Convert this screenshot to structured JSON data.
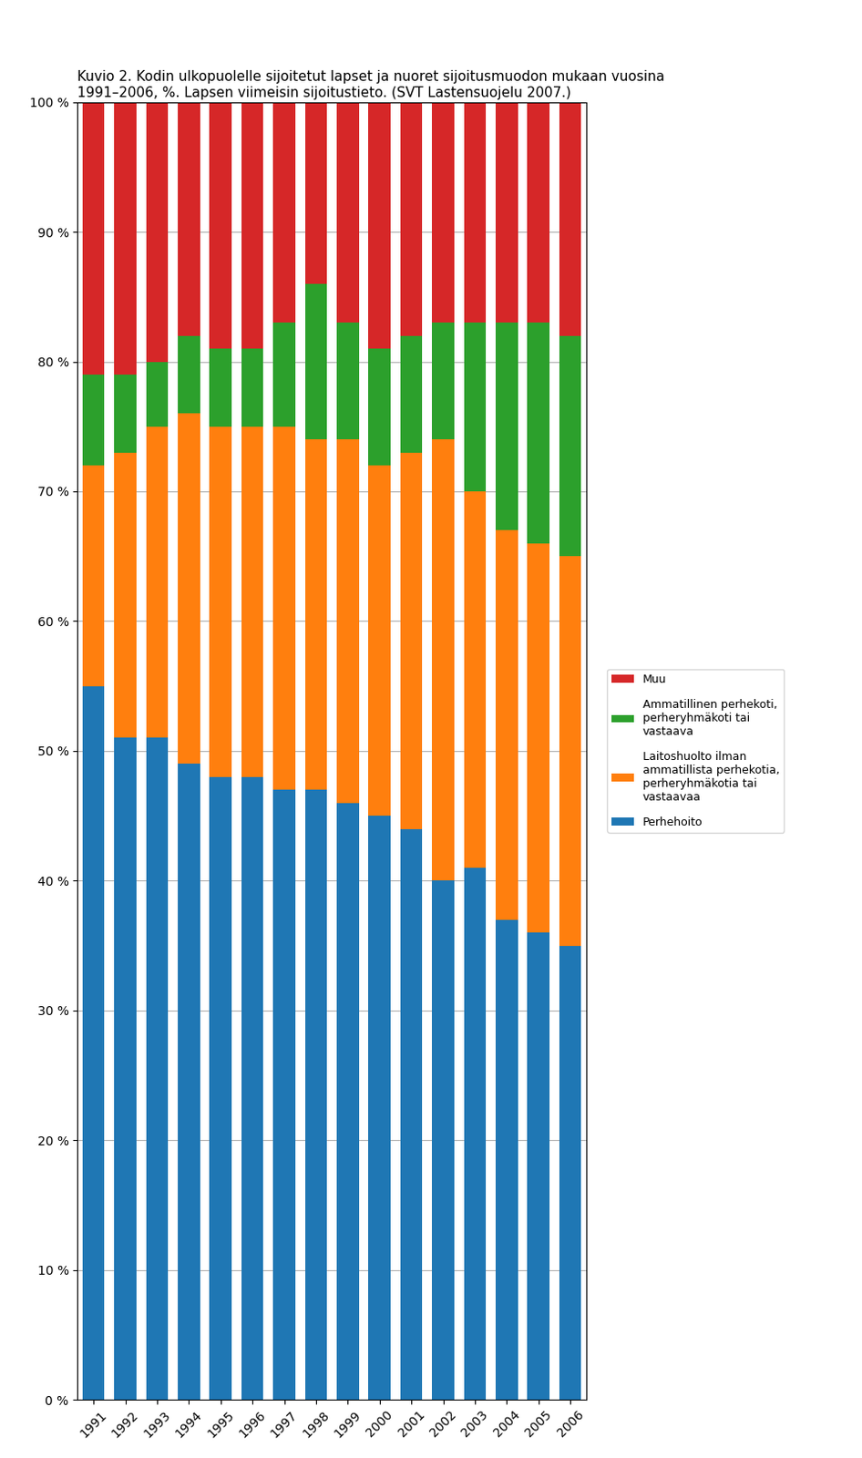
{
  "chart_data": {
    "type": "bar",
    "stacked": true,
    "title": "Kuvio 2. Kodin ulkopuolelle sijoitetut lapset ja nuoret sijoitusmuodon mukaan vuosina\n1991–2006, %. Lapsen viimeisin sijoitustieto. (SVT Lastensuojelu 2007.)",
    "categories": [
      "1991",
      "1992",
      "1993",
      "1994",
      "1995",
      "1996",
      "1997",
      "1998",
      "1999",
      "2000",
      "2001",
      "2002",
      "2003",
      "2004",
      "2005",
      "2006"
    ],
    "series": [
      {
        "name": "Perhehoito",
        "values": [
          55,
          51,
          51,
          49,
          48,
          48,
          47,
          47,
          46,
          45,
          44,
          40,
          41,
          37,
          36,
          35
        ]
      },
      {
        "name": "Laitoshuolto ilman\nammatillista perhekotia,\nperheryhmäkotia tai\nvastaavaa",
        "values": [
          17,
          22,
          24,
          27,
          27,
          27,
          28,
          27,
          28,
          27,
          29,
          34,
          29,
          30,
          30,
          30
        ]
      },
      {
        "name": "Ammatillinen perhekoti,\nperheryhmäkoti tai\nvastaava",
        "values": [
          7,
          6,
          5,
          6,
          6,
          6,
          8,
          12,
          9,
          9,
          9,
          9,
          13,
          16,
          17,
          17
        ]
      },
      {
        "name": "Muu",
        "values": [
          21,
          21,
          20,
          18,
          19,
          19,
          17,
          14,
          17,
          19,
          18,
          17,
          17,
          17,
          17,
          18
        ]
      }
    ],
    "ylim": [
      0,
      100
    ],
    "yticks": [
      {
        "value": 0,
        "label": "0 %"
      },
      {
        "value": 10,
        "label": "10 %"
      },
      {
        "value": 20,
        "label": "20 %"
      },
      {
        "value": 30,
        "label": "30 %"
      },
      {
        "value": 40,
        "label": "40 %"
      },
      {
        "value": 50,
        "label": "50 %"
      },
      {
        "value": 60,
        "label": "60 %"
      },
      {
        "value": 70,
        "label": "70 %"
      },
      {
        "value": 80,
        "label": "80 %"
      },
      {
        "value": 90,
        "label": "90 %"
      },
      {
        "value": 100,
        "label": "100 %"
      }
    ],
    "grid": true,
    "legend": "right"
  }
}
